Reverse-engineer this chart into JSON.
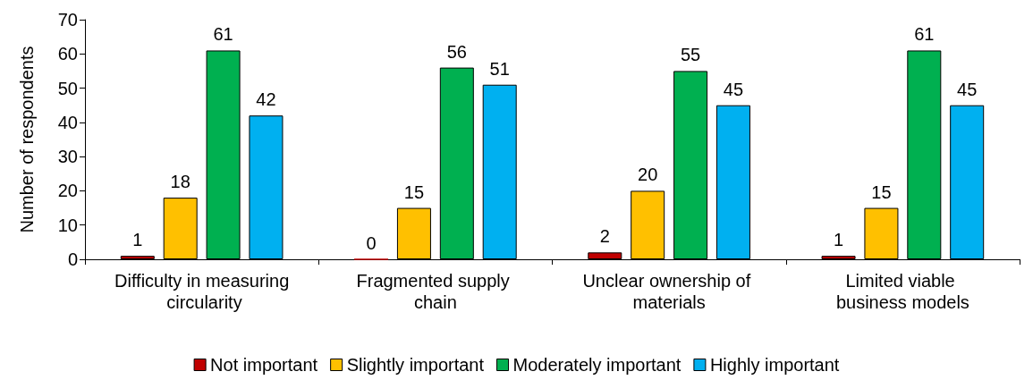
{
  "chart_data": {
    "type": "bar",
    "ylabel": "Number of respondents",
    "categories": [
      "Difficulty in measuring circularity",
      "Fragmented supply chain",
      "Unclear ownership of materials",
      "Limited viable business models"
    ],
    "series": [
      {
        "name": "Not important",
        "color": "#c00000",
        "values": [
          1,
          0,
          2,
          1
        ]
      },
      {
        "name": "Slightly important",
        "color": "#ffc000",
        "values": [
          18,
          15,
          20,
          15
        ]
      },
      {
        "name": "Moderately important",
        "color": "#00b050",
        "values": [
          61,
          56,
          55,
          61
        ]
      },
      {
        "name": "Highly important",
        "color": "#00b0f0",
        "values": [
          42,
          51,
          45,
          45
        ]
      }
    ],
    "ylim": [
      0,
      70
    ],
    "yticks": [
      0,
      10,
      20,
      30,
      40,
      50,
      60,
      70
    ],
    "grid": false,
    "legend": "bottom",
    "data_labels": true
  }
}
